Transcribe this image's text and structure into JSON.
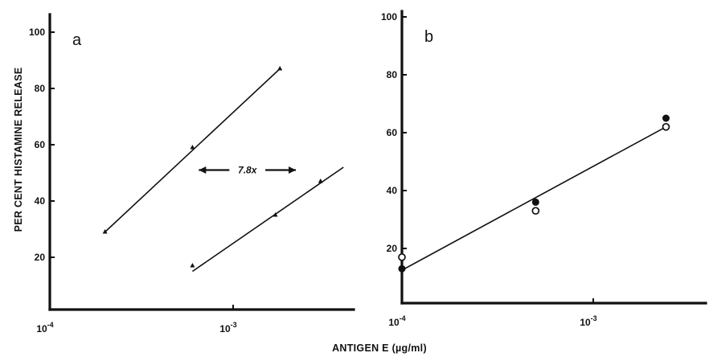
{
  "ylabel": "PER CENT HISTAMINE RELEASE",
  "xlabel": "ANTIGEN E (µg/ml)",
  "chart_data": [
    {
      "panel": "a",
      "type": "line",
      "x_scale": "log",
      "xlim": [
        0.0001,
        0.005
      ],
      "ylim": [
        0,
        105
      ],
      "x_ticks": [
        {
          "value": 0.0001,
          "base": "10",
          "exp": "-4"
        },
        {
          "value": 0.001,
          "base": "10",
          "exp": "-3"
        }
      ],
      "y_ticks": [
        20,
        40,
        60,
        80,
        100
      ],
      "series": [
        {
          "marker": "triangle",
          "points": [
            [
              0.0002,
              29
            ],
            [
              0.0006,
              59
            ],
            [
              0.0018,
              87
            ]
          ],
          "fit": [
            [
              0.0002,
              29
            ],
            [
              0.0018,
              87
            ]
          ]
        },
        {
          "marker": "triangle",
          "points": [
            [
              0.0006,
              17
            ],
            [
              0.0017,
              35
            ],
            [
              0.003,
              47
            ]
          ],
          "fit": [
            [
              0.0006,
              15
            ],
            [
              0.004,
              52
            ]
          ]
        }
      ],
      "annotations": [
        {
          "text": "7.8x",
          "arrow": "double",
          "x_from": 0.00065,
          "x_to": 0.0022,
          "y": 51
        }
      ]
    },
    {
      "panel": "b",
      "type": "line",
      "x_scale": "log",
      "xlim": [
        0.0001,
        0.004
      ],
      "ylim": [
        0,
        102
      ],
      "x_ticks": [
        {
          "value": 0.0001,
          "base": "10",
          "exp": "-4"
        },
        {
          "value": 0.001,
          "base": "10",
          "exp": "-3"
        }
      ],
      "y_ticks": [
        20,
        40,
        60,
        80,
        100
      ],
      "series": [
        {
          "marker": "filled-circle",
          "points": [
            [
              0.0001,
              13
            ],
            [
              0.0005,
              36
            ],
            [
              0.0024,
              65
            ]
          ]
        },
        {
          "marker": "open-circle",
          "points": [
            [
              0.0001,
              17
            ],
            [
              0.0005,
              33
            ],
            [
              0.0024,
              62
            ]
          ]
        }
      ],
      "fit": [
        [
          0.0001,
          12.5
        ],
        [
          0.0024,
          62
        ]
      ]
    }
  ]
}
